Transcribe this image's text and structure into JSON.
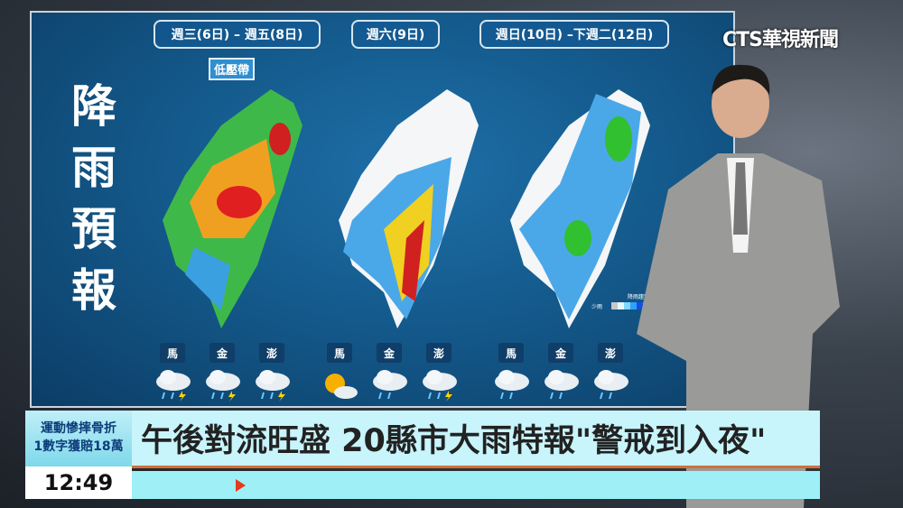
{
  "screen": {
    "periods": [
      "週三(6日) – 週五(8日)",
      "週六(9日)",
      "週日(10日) –下週二(12日)"
    ],
    "tag": "低壓帶",
    "title": "降雨預報",
    "islands": [
      "馬",
      "金",
      "澎",
      "馬",
      "金",
      "澎",
      "馬",
      "金",
      "澎"
    ],
    "weather_icons": [
      "thunderstorm-icon",
      "thunderstorm-icon",
      "thunderstorm-icon",
      "sunny-cloudy-icon",
      "rain-cloud-icon",
      "thunderstorm-icon",
      "rain-cloud-icon",
      "rain-cloud-icon",
      "rain-cloud-icon"
    ],
    "legend": {
      "title": "降雨趨勢圖色階",
      "low_label": "少雨",
      "colors": [
        "#c8c8c8",
        "#e8f8ff",
        "#80d8ff",
        "#30a0ff",
        "#1050e0",
        "#30c030",
        "#90e000",
        "#f0f000",
        "#ffb000",
        "#ff7000",
        "#e00000",
        "#c00000",
        "#e000e0",
        "#ff40ff"
      ]
    }
  },
  "logo": {
    "text": "CTS華視新聞"
  },
  "lower_third": {
    "side_line1": "運動慘摔骨折",
    "side_line2": "1數字獲賠18萬",
    "time": "12:49",
    "headline": "午後對流旺盛 20縣市大雨特報\"警戒到入夜\""
  }
}
